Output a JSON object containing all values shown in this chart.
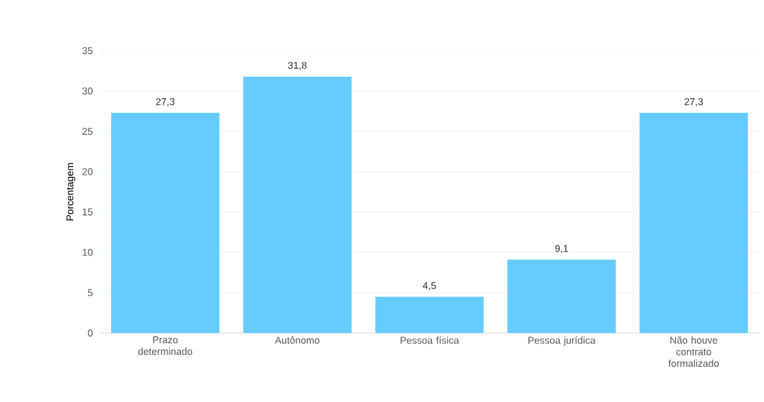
{
  "chart_data": {
    "type": "bar",
    "ylabel": "Porcentagem",
    "categories": [
      "Prazo determinado",
      "Autônomo",
      "Pessoa física",
      "Pessoa jurídica",
      "Não houve contrato formalizado"
    ],
    "values": [
      27.3,
      31.8,
      4.5,
      9.1,
      27.3
    ],
    "value_labels": [
      "27,3",
      "31,8",
      "4,5",
      "9,1",
      "27,3"
    ],
    "color": "#66ccff",
    "ylim": [
      0,
      35
    ],
    "yticks": [
      0,
      5,
      10,
      15,
      20,
      25,
      30,
      35
    ],
    "grid": "y"
  }
}
